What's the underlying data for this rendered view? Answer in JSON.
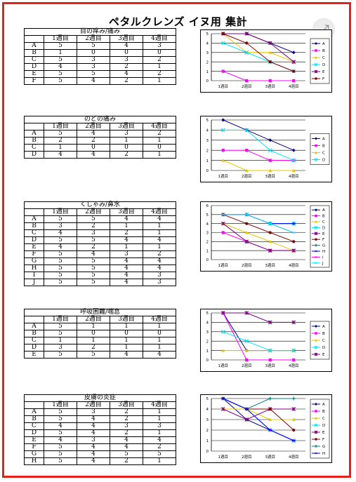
{
  "title": "ペタルクレンズ  イヌ用  集計",
  "expand_icon": "expand-icon",
  "chart_data": [
    {
      "type": "line",
      "title": "目の痒み/痛み",
      "columns": [
        "",
        "1週目",
        "2週目",
        "3週目",
        "4週目"
      ],
      "categories": [
        "1週目",
        "2週目",
        "3週目",
        "4週目"
      ],
      "ylim": [
        0,
        5
      ],
      "y_ticks": [
        "0",
        "1",
        "2",
        "3",
        "4",
        "5"
      ],
      "series": [
        {
          "name": "A",
          "values": [
            5,
            5,
            4,
            3
          ],
          "color": "#000080",
          "marker": "diamond"
        },
        {
          "name": "B",
          "values": [
            1,
            0,
            0,
            0
          ],
          "color": "#ff00ff",
          "marker": "square"
        },
        {
          "name": "C",
          "values": [
            5,
            3,
            3,
            2
          ],
          "color": "#e6c800",
          "marker": "triangle"
        },
        {
          "name": "D",
          "values": [
            4,
            3,
            2,
            1
          ],
          "color": "#00e5ff",
          "marker": "x"
        },
        {
          "name": "E",
          "values": [
            5,
            5,
            4,
            2
          ],
          "color": "#800080",
          "marker": "star"
        },
        {
          "name": "F",
          "values": [
            5,
            4,
            2,
            1
          ],
          "color": "#800000",
          "marker": "circle"
        }
      ]
    },
    {
      "type": "line",
      "title": "のどの痛み",
      "columns": [
        "",
        "1週目",
        "2週目",
        "3週目",
        "4週目"
      ],
      "categories": [
        "1週目",
        "2週目",
        "3週目",
        "4週目"
      ],
      "ylim": [
        0,
        5
      ],
      "y_ticks": [
        "0",
        "1",
        "2",
        "3",
        "4",
        "5"
      ],
      "series": [
        {
          "name": "A",
          "values": [
            5,
            4,
            3,
            2
          ],
          "color": "#000080",
          "marker": "diamond"
        },
        {
          "name": "B",
          "values": [
            2,
            2,
            1,
            1
          ],
          "color": "#ff00ff",
          "marker": "square"
        },
        {
          "name": "C",
          "values": [
            1,
            0,
            0,
            0
          ],
          "color": "#e6c800",
          "marker": "triangle"
        },
        {
          "name": "D",
          "values": [
            4,
            4,
            2,
            1
          ],
          "color": "#00e5ff",
          "marker": "x"
        }
      ]
    },
    {
      "type": "line",
      "title": "くしゃみ/鼻水",
      "columns": [
        "",
        "1週目",
        "2週目",
        "3週目",
        "4週目"
      ],
      "categories": [
        "1週目",
        "2週目",
        "3週目",
        "4週目"
      ],
      "ylim": [
        0,
        6
      ],
      "y_ticks": [
        "0",
        "1",
        "2",
        "3",
        "4",
        "5",
        "6"
      ],
      "series": [
        {
          "name": "A",
          "values": [
            5,
            5,
            4,
            4
          ],
          "color": "#000080",
          "marker": "diamond"
        },
        {
          "name": "B",
          "values": [
            3,
            2,
            1,
            1
          ],
          "color": "#ff00ff",
          "marker": "square"
        },
        {
          "name": "C",
          "values": [
            4,
            3,
            2,
            1
          ],
          "color": "#e6c800",
          "marker": "triangle"
        },
        {
          "name": "D",
          "values": [
            5,
            5,
            4,
            4
          ],
          "color": "#00e5ff",
          "marker": "x"
        },
        {
          "name": "E",
          "values": [
            4,
            2,
            1,
            1
          ],
          "color": "#800080",
          "marker": "star"
        },
        {
          "name": "F",
          "values": [
            5,
            4,
            3,
            2
          ],
          "color": "#800000",
          "marker": "circle"
        },
        {
          "name": "G",
          "values": [
            5,
            5,
            4,
            4
          ],
          "color": "#008080",
          "marker": "plus"
        },
        {
          "name": "H",
          "values": [
            5,
            5,
            4,
            4
          ],
          "color": "#0000ff",
          "marker": "dash"
        },
        {
          "name": "I",
          "values": [
            5,
            5,
            4,
            3
          ],
          "color": "#ff00ff",
          "marker": "dash"
        },
        {
          "name": "J",
          "values": [
            5,
            5,
            4,
            3
          ],
          "color": "#00e5ff",
          "marker": "dash"
        }
      ]
    },
    {
      "type": "line",
      "title": "呼吸困難/喘息",
      "columns": [
        "",
        "1週目",
        "2週目",
        "3週目",
        "4週目"
      ],
      "categories": [
        "1週目",
        "2週目",
        "3週目",
        "4週目"
      ],
      "ylim": [
        0,
        5
      ],
      "y_ticks": [
        "0",
        "1",
        "2",
        "3",
        "4",
        "5"
      ],
      "series": [
        {
          "name": "A",
          "values": [
            5,
            1,
            1,
            1
          ],
          "color": "#000080",
          "marker": "diamond"
        },
        {
          "name": "B",
          "values": [
            5,
            0,
            0,
            0
          ],
          "color": "#ff00ff",
          "marker": "square"
        },
        {
          "name": "C",
          "values": [
            1,
            1,
            1,
            1
          ],
          "color": "#e6c800",
          "marker": "triangle"
        },
        {
          "name": "D",
          "values": [
            3,
            2,
            1,
            1
          ],
          "color": "#00e5ff",
          "marker": "x"
        },
        {
          "name": "E",
          "values": [
            5,
            5,
            4,
            4
          ],
          "color": "#800080",
          "marker": "star"
        }
      ]
    },
    {
      "type": "line",
      "title": "皮膚の炎症",
      "columns": [
        "",
        "1週目",
        "2週目",
        "3週目",
        "4週目"
      ],
      "categories": [
        "1週目",
        "2週目",
        "3週目",
        "4週目"
      ],
      "ylim": [
        0,
        5
      ],
      "y_ticks": [
        "0",
        "1",
        "2",
        "3",
        "4",
        "5"
      ],
      "series": [
        {
          "name": "A",
          "values": [
            5,
            3,
            2,
            1
          ],
          "color": "#000080",
          "marker": "diamond"
        },
        {
          "name": "B",
          "values": [
            5,
            4,
            2,
            1
          ],
          "color": "#ff00ff",
          "marker": "square"
        },
        {
          "name": "C",
          "values": [
            4,
            4,
            3,
            3
          ],
          "color": "#e6c800",
          "marker": "triangle"
        },
        {
          "name": "D",
          "values": [
            5,
            4,
            2,
            1
          ],
          "color": "#00e5ff",
          "marker": "x"
        },
        {
          "name": "E",
          "values": [
            4,
            3,
            4,
            4
          ],
          "color": "#800080",
          "marker": "star"
        },
        {
          "name": "F",
          "values": [
            5,
            4,
            4,
            2
          ],
          "color": "#800000",
          "marker": "circle"
        },
        {
          "name": "G",
          "values": [
            5,
            4,
            5,
            5
          ],
          "color": "#008080",
          "marker": "plus"
        },
        {
          "name": "H",
          "values": [
            5,
            4,
            2,
            1
          ],
          "color": "#0000ff",
          "marker": "dash"
        }
      ]
    }
  ]
}
